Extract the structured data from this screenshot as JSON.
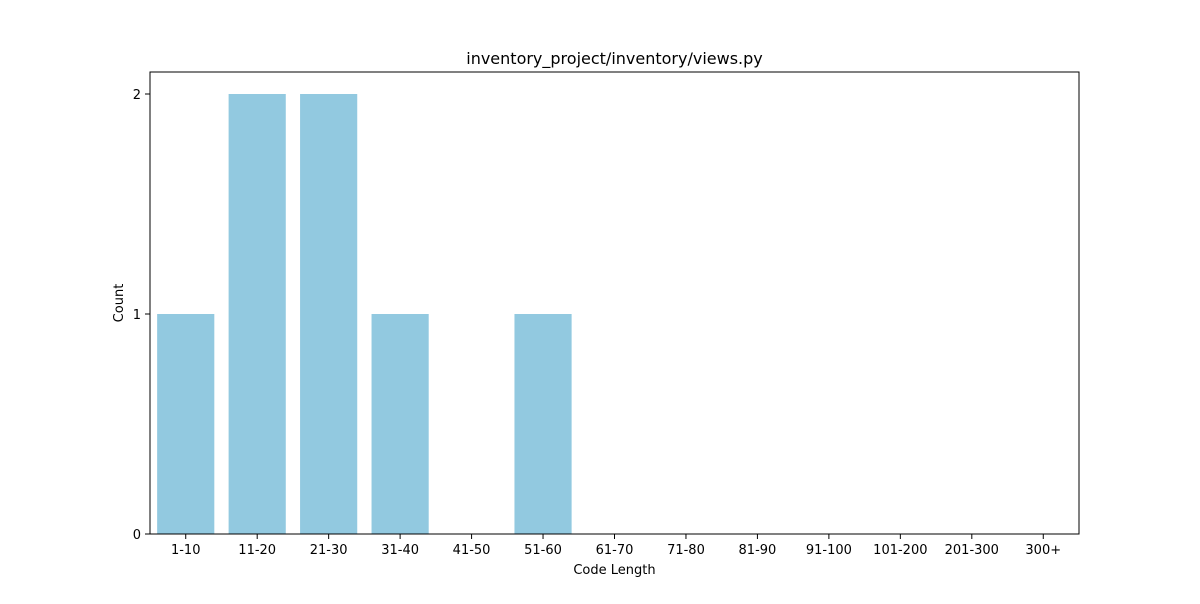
{
  "chart_data": {
    "type": "bar",
    "title": "inventory_project/inventory/views.py",
    "xlabel": "Code Length",
    "ylabel": "Count",
    "categories": [
      "1-10",
      "11-20",
      "21-30",
      "31-40",
      "41-50",
      "51-60",
      "61-70",
      "71-80",
      "81-90",
      "91-100",
      "101-200",
      "201-300",
      "300+"
    ],
    "values": [
      1,
      2,
      2,
      1,
      0,
      1,
      0,
      0,
      0,
      0,
      0,
      0,
      0
    ],
    "yticks": [
      0,
      1,
      2
    ],
    "ylim": [
      0,
      2.1
    ],
    "grid": false,
    "legend": "none",
    "bar_color": "#92c9e0"
  }
}
